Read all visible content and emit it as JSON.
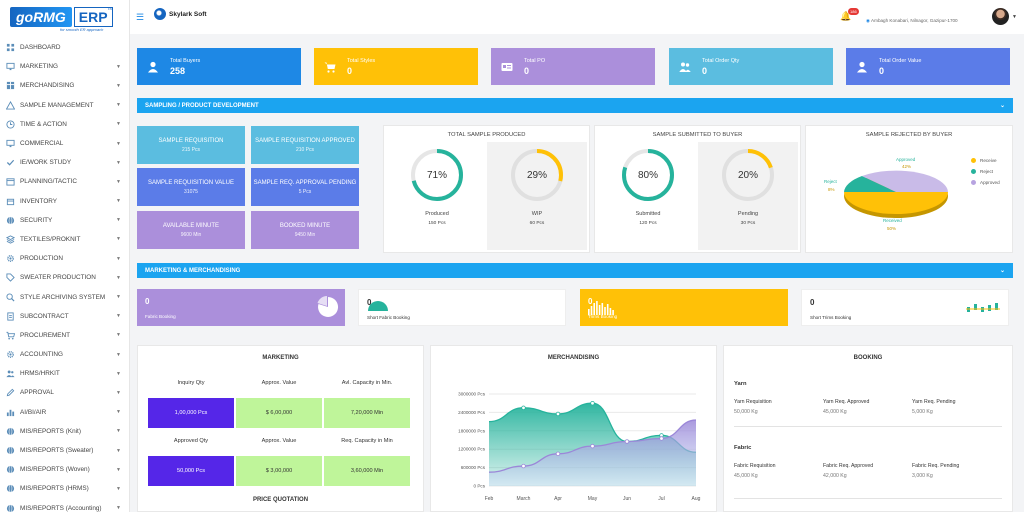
{
  "brand": {
    "logo": "goRMG",
    "logo_suffix": "ERP",
    "tm": "TM",
    "tagline": "for smooth ER approach",
    "company": "Skylark Soft"
  },
  "topbar": {
    "notifications": "186",
    "location": "Ambagh Konabari, Nilnagor, Gazipur-1700"
  },
  "sidebar": {
    "items": [
      {
        "label": "DASHBOARD",
        "icon": "grid-icon",
        "caret": false
      },
      {
        "label": "MARKETING",
        "icon": "monitor-icon",
        "caret": true
      },
      {
        "label": "MERCHANDISING",
        "icon": "table-icon",
        "caret": true
      },
      {
        "label": "SAMPLE MANAGEMENT",
        "icon": "warning-icon",
        "caret": true
      },
      {
        "label": "TIME & ACTION",
        "icon": "clock-icon",
        "caret": true
      },
      {
        "label": "COMMERCIAL",
        "icon": "monitor-icon",
        "caret": true
      },
      {
        "label": "IE/WORK STUDY",
        "icon": "check-icon",
        "caret": true
      },
      {
        "label": "PLANNING/TACTIC",
        "icon": "calendar-icon",
        "caret": true
      },
      {
        "label": "INVENTORY",
        "icon": "box-icon",
        "caret": true
      },
      {
        "label": "SECURITY",
        "icon": "globe-icon",
        "caret": true
      },
      {
        "label": "TEXTILES/PROKNIT",
        "icon": "layers-icon",
        "caret": true
      },
      {
        "label": "PRODUCTION",
        "icon": "gear-icon",
        "caret": true
      },
      {
        "label": "SWEATER PRODUCTION",
        "icon": "tag-icon",
        "caret": true
      },
      {
        "label": "STYLE ARCHIVING SYSTEM",
        "icon": "search-icon",
        "caret": true
      },
      {
        "label": "SUBCONTRACT",
        "icon": "document-icon",
        "caret": true
      },
      {
        "label": "PROCUREMENT",
        "icon": "cart-icon",
        "caret": true
      },
      {
        "label": "ACCOUNTING",
        "icon": "gear-icon",
        "caret": true
      },
      {
        "label": "HRMS/HRKIT",
        "icon": "users-icon",
        "caret": true
      },
      {
        "label": "APPROVAL",
        "icon": "pen-icon",
        "caret": true
      },
      {
        "label": "AI/BI/AIR",
        "icon": "chart-icon",
        "caret": true
      },
      {
        "label": "MIS/REPORTS (Knit)",
        "icon": "globe-icon",
        "caret": true
      },
      {
        "label": "MIS/REPORTS (Sweater)",
        "icon": "globe-icon",
        "caret": true
      },
      {
        "label": "MIS/REPORTS (Woven)",
        "icon": "globe-icon",
        "caret": true
      },
      {
        "label": "MIS/REPORTS (HRMS)",
        "icon": "globe-icon",
        "caret": true
      },
      {
        "label": "MIS/REPORTS (Accounting)",
        "icon": "globe-icon",
        "caret": true
      }
    ]
  },
  "stats": [
    {
      "label": "Total Buyers",
      "value": "258",
      "color": "#1e88e5",
      "icon": "user-icon"
    },
    {
      "label": "Total Styles",
      "value": "0",
      "color": "#ffc107",
      "icon": "cart-icon"
    },
    {
      "label": "Total PO",
      "value": "0",
      "color": "#ab8fdb",
      "icon": "id-card-icon"
    },
    {
      "label": "Total Order Qty",
      "value": "0",
      "color": "#5bbde0",
      "icon": "users-icon"
    },
    {
      "label": "Total Order Value",
      "value": "0",
      "color": "#5b7ce8",
      "icon": "user-icon"
    }
  ],
  "sections": {
    "sampling": "SAMPLING / PRODUCT DEVELOPMENT",
    "marketing": "MARKETING & MERCHANDISING"
  },
  "tiles": [
    {
      "label": "SAMPLE REQUISITION",
      "value": "215 Pcs",
      "color": "#5bbde0"
    },
    {
      "label": "SAMPLE REQUISITION APPROVED",
      "value": "210 Pcs",
      "color": "#5bbde0"
    },
    {
      "label": "SAMPLE REQUISITION VALUE",
      "value": "31075",
      "color": "#5b7ce8"
    },
    {
      "label": "SAMPLE REQ. APPROVAL PENDING",
      "value": "5 Pcs",
      "color": "#5b7ce8"
    },
    {
      "label": "AVAILABLE MINUTE",
      "value": "9600 Min",
      "color": "#ab8fdb"
    },
    {
      "label": "BOOKED MINUTE",
      "value": "9450 Min",
      "color": "#ab8fdb"
    }
  ],
  "produced": {
    "title": "TOTAL SAMPLE PRODUCED",
    "a": {
      "pct": "71%",
      "fill": 0.71,
      "label": "Produced",
      "value": "150 Pcs",
      "color": "#26b39c"
    },
    "b": {
      "pct": "29%",
      "fill": 0.29,
      "label": "WIP",
      "value": "60 Pcs",
      "color": "#ffc107"
    }
  },
  "submitted": {
    "title": "SAMPLE SUBMITTED TO BUYER",
    "a": {
      "pct": "80%",
      "fill": 0.8,
      "label": "Submitted",
      "value": "120 Pcs",
      "color": "#26b39c"
    },
    "b": {
      "pct": "20%",
      "fill": 0.2,
      "label": "Pending",
      "value": "30 Pcs",
      "color": "#ffc107"
    }
  },
  "rejected": {
    "title": "SAMPLE REJECTED BY BUYER",
    "approved_label": "Approved",
    "approved_pct": "42%",
    "reject_label": "Reject",
    "reject_pct": "8%",
    "received_label": "Received",
    "received_pct": "50%",
    "legend": [
      {
        "label": "Receive",
        "color": "#ffc107"
      },
      {
        "label": "Reject",
        "color": "#26b39c"
      },
      {
        "label": "Approved",
        "color": "#b7a3e0"
      }
    ]
  },
  "booking_tiles": [
    {
      "value": "0",
      "label": "Fabric Booking",
      "color": "#ab8fdb"
    },
    {
      "value": "0",
      "label": "Short Fabric Booking",
      "color": "#ffffff"
    },
    {
      "value": "0",
      "label": "Trims Booking",
      "color": "#ffc107"
    },
    {
      "value": "0",
      "label": "Short Trims Booking",
      "color": "#ffffff"
    }
  ],
  "marketing": {
    "title": "MARKETING",
    "headers1": [
      "Inquiry Qty",
      "Approx. Value",
      "Avl. Capacity in Min."
    ],
    "values1": [
      "1,00,000 Pcs",
      "$ 6,00,000",
      "7,20,000 Min"
    ],
    "headers2": [
      "Approved Qty",
      "Approx. Value",
      "Req. Capacity in Min"
    ],
    "values2": [
      "50,000 Pcs",
      "$ 3,00,000",
      "3,60,000 Min"
    ],
    "footer": "PRICE QUOTATION"
  },
  "merch": {
    "title": "MERCHANDISING"
  },
  "chart_data": {
    "type": "area",
    "title": "MERCHANDISING",
    "categories": [
      "Feb",
      "March",
      "Apr",
      "May",
      "Jun",
      "Jul",
      "Aug"
    ],
    "yticks": [
      "3000000 Pcs",
      "2400000 Pcs",
      "1800000 Pcs",
      "1200000 Pcs",
      "600000 Pcs",
      "0 Pcs"
    ],
    "ylim": [
      0,
      3000000
    ],
    "series": [
      {
        "color": "#26b39c",
        "values": [
          2100000,
          2550000,
          2350000,
          2700000,
          1450000,
          1650000,
          1100000
        ]
      },
      {
        "color": "#9b87d8",
        "values": [
          450000,
          650000,
          1050000,
          1300000,
          1450000,
          1550000,
          2150000
        ]
      }
    ]
  },
  "booking": {
    "title": "BOOKING",
    "yarn": {
      "head": "Yarn",
      "items": [
        {
          "label": "Yarn Requisition",
          "value": "50,000 Kg"
        },
        {
          "label": "Yarn Req. Approved",
          "value": "45,000 Kg"
        },
        {
          "label": "Yarn Req. Pending",
          "value": "5,000 Kg"
        }
      ]
    },
    "fabric": {
      "head": "Fabric",
      "items": [
        {
          "label": "Fabric Requisition",
          "value": "45,000 Kg"
        },
        {
          "label": "Fabric Req. Approved",
          "value": "42,000 Kg"
        },
        {
          "label": "Fabric Req. Pending",
          "value": "3,000 Kg"
        }
      ]
    }
  }
}
